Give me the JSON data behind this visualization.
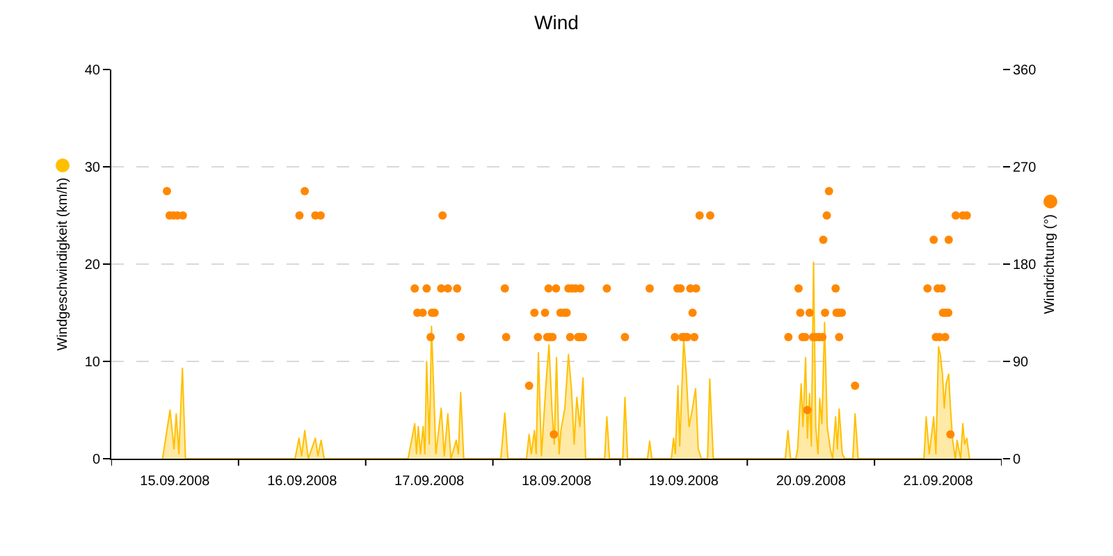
{
  "chart_data": {
    "type": "area",
    "title": "Wind",
    "ylabel": "Windgeschwindigkeit (km/h)",
    "y2label": "Windrichtung (°)",
    "xlim": [
      "2008-09-15",
      "2008-09-22"
    ],
    "xticks": [
      {
        "value": "2008-09-15",
        "label": null
      },
      {
        "value": "2008-09-15T12:00",
        "label": "15.09.2008"
      },
      {
        "value": "2008-09-16",
        "label": null
      },
      {
        "value": "2008-09-16T12:00",
        "label": "16.09.2008"
      },
      {
        "value": "2008-09-17",
        "label": null
      },
      {
        "value": "2008-09-17T12:00",
        "label": "17.09.2008"
      },
      {
        "value": "2008-09-18",
        "label": null
      },
      {
        "value": "2008-09-18T12:00",
        "label": "18.09.2008"
      },
      {
        "value": "2008-09-19",
        "label": null
      },
      {
        "value": "2008-09-19T12:00",
        "label": "19.09.2008"
      },
      {
        "value": "2008-09-20",
        "label": null
      },
      {
        "value": "2008-09-20T12:00",
        "label": "20.09.2008"
      },
      {
        "value": "2008-09-21",
        "label": null
      },
      {
        "value": "2008-09-21T12:00",
        "label": "21.09.2008"
      },
      {
        "value": "2008-09-22",
        "label": null
      }
    ],
    "ylim": [
      0,
      40
    ],
    "yticks": [
      0,
      10,
      20,
      30,
      40
    ],
    "y2lim": [
      0,
      360
    ],
    "y2ticks": [
      0,
      90,
      180,
      270,
      360
    ],
    "grid": "y",
    "series": [
      {
        "color": "#ffc000",
        "x": [
          "2008-09-15T09:40",
          "2008-09-15T11:05",
          "2008-09-15T11:50",
          "2008-09-15T12:15",
          "2008-09-15T12:45",
          "2008-09-15T13:25",
          "2008-09-15T14:00",
          "2008-09-16T10:40",
          "2008-09-16T11:25",
          "2008-09-16T11:55",
          "2008-09-16T12:30",
          "2008-09-16T13:10",
          "2008-09-16T14:30",
          "2008-09-16T15:00",
          "2008-09-16T15:35",
          "2008-09-16T16:10",
          "2008-09-17T08:00",
          "2008-09-17T09:15",
          "2008-09-17T09:35",
          "2008-09-17T09:55",
          "2008-09-17T10:20",
          "2008-09-17T10:50",
          "2008-09-17T11:10",
          "2008-09-17T11:30",
          "2008-09-17T12:00",
          "2008-09-17T12:25",
          "2008-09-17T13:15",
          "2008-09-17T14:15",
          "2008-09-17T14:50",
          "2008-09-17T15:30",
          "2008-09-17T16:05",
          "2008-09-17T17:05",
          "2008-09-17T17:30",
          "2008-09-17T17:55",
          "2008-09-17T18:30",
          "2008-09-18T01:30",
          "2008-09-18T02:15",
          "2008-09-18T02:50",
          "2008-09-18T06:20",
          "2008-09-18T06:50",
          "2008-09-18T07:15",
          "2008-09-18T07:50",
          "2008-09-18T08:10",
          "2008-09-18T08:35",
          "2008-09-18T09:10",
          "2008-09-18T10:00",
          "2008-09-18T10:35",
          "2008-09-18T11:10",
          "2008-09-18T11:35",
          "2008-09-18T12:00",
          "2008-09-18T12:30",
          "2008-09-18T12:50",
          "2008-09-18T13:35",
          "2008-09-18T14:15",
          "2008-09-18T14:50",
          "2008-09-18T15:20",
          "2008-09-18T15:50",
          "2008-09-18T16:25",
          "2008-09-18T17:00",
          "2008-09-18T17:30",
          "2008-09-18T21:05",
          "2008-09-18T21:30",
          "2008-09-18T22:00",
          "2008-09-19T00:30",
          "2008-09-19T00:55",
          "2008-09-19T01:25",
          "2008-09-19T05:10",
          "2008-09-19T05:35",
          "2008-09-19T06:00",
          "2008-09-19T09:40",
          "2008-09-19T10:05",
          "2008-09-19T10:25",
          "2008-09-19T10:55",
          "2008-09-19T11:15",
          "2008-09-19T12:00",
          "2008-09-19T12:30",
          "2008-09-19T13:00",
          "2008-09-19T13:40",
          "2008-09-19T14:15",
          "2008-09-19T14:45",
          "2008-09-19T15:20",
          "2008-09-19T16:30",
          "2008-09-19T16:55",
          "2008-09-19T17:35",
          "2008-09-20T07:10",
          "2008-09-20T07:40",
          "2008-09-20T08:10",
          "2008-09-20T09:10",
          "2008-09-20T09:30",
          "2008-09-20T10:10",
          "2008-09-20T10:30",
          "2008-09-20T11:00",
          "2008-09-20T11:20",
          "2008-09-20T11:45",
          "2008-09-20T12:05",
          "2008-09-20T12:30",
          "2008-09-20T12:55",
          "2008-09-20T13:20",
          "2008-09-20T13:40",
          "2008-09-20T14:05",
          "2008-09-20T14:35",
          "2008-09-20T15:05",
          "2008-09-20T15:40",
          "2008-09-20T16:05",
          "2008-09-20T16:40",
          "2008-09-20T17:00",
          "2008-09-20T17:20",
          "2008-09-20T17:55",
          "2008-09-20T18:25",
          "2008-09-20T19:55",
          "2008-09-20T20:20",
          "2008-09-20T20:55",
          "2008-09-21T09:20",
          "2008-09-21T09:45",
          "2008-09-21T10:20",
          "2008-09-21T11:10",
          "2008-09-21T11:35",
          "2008-09-21T12:05",
          "2008-09-21T12:25",
          "2008-09-21T12:50",
          "2008-09-21T13:10",
          "2008-09-21T13:30",
          "2008-09-21T14:00",
          "2008-09-21T14:20",
          "2008-09-21T14:45",
          "2008-09-21T15:15",
          "2008-09-21T15:35",
          "2008-09-21T16:15",
          "2008-09-21T16:40",
          "2008-09-21T17:00",
          "2008-09-21T17:25",
          "2008-09-21T17:55"
        ],
        "values": [
          0,
          5.0,
          1.0,
          4.6,
          0.5,
          9.3,
          0,
          0,
          2.1,
          0.3,
          2.9,
          0,
          2.1,
          0.3,
          1.9,
          0,
          0,
          3.6,
          0.5,
          3.3,
          0.5,
          3.3,
          0.5,
          10.0,
          1.5,
          13.6,
          0.5,
          5.2,
          0.3,
          4.6,
          0,
          1.9,
          0.5,
          6.8,
          0,
          0,
          4.7,
          0,
          0,
          2.5,
          0.5,
          2.9,
          0.5,
          10.9,
          0.3,
          7.6,
          11.7,
          4.8,
          1.5,
          10.4,
          0.5,
          2.9,
          5.2,
          10.7,
          7.1,
          1.5,
          6.3,
          3.3,
          8.3,
          0,
          0,
          4.3,
          0,
          0,
          6.3,
          0,
          0,
          1.8,
          0,
          0,
          2.1,
          0.5,
          7.5,
          1.3,
          12.3,
          8.6,
          3.3,
          5.2,
          7.2,
          1.0,
          0,
          0,
          8.2,
          0,
          0,
          2.9,
          0,
          0,
          1.0,
          7.7,
          3.3,
          10.4,
          2.1,
          6.7,
          1.3,
          20.2,
          3.3,
          0.5,
          6.2,
          3.6,
          14.0,
          3.3,
          1.0,
          0,
          4.3,
          1.0,
          5.1,
          0.5,
          0,
          0,
          4.6,
          0,
          0,
          4.3,
          0.5,
          4.3,
          0.5,
          11.5,
          10.7,
          8.6,
          5.2,
          7.7,
          8.7,
          5.2,
          1.9,
          0,
          1.9,
          0,
          3.6,
          1.5,
          2.1,
          0
        ]
      },
      {
        "type": "scatter",
        "axis": "y2",
        "color": "#ff8800",
        "marker": "circle",
        "x": [
          "2008-09-15T10:30",
          "2008-09-15T11:00",
          "2008-09-15T11:45",
          "2008-09-15T12:30",
          "2008-09-15T13:30",
          "2008-09-16T11:30",
          "2008-09-16T12:30",
          "2008-09-16T14:30",
          "2008-09-16T15:30",
          "2008-09-17T09:15",
          "2008-09-17T09:45",
          "2008-09-17T10:45",
          "2008-09-17T11:30",
          "2008-09-17T12:15",
          "2008-09-17T12:30",
          "2008-09-17T13:00",
          "2008-09-17T14:15",
          "2008-09-17T14:30",
          "2008-09-17T15:30",
          "2008-09-17T17:15",
          "2008-09-17T17:55",
          "2008-09-18T02:15",
          "2008-09-18T02:30",
          "2008-09-18T06:50",
          "2008-09-18T07:50",
          "2008-09-18T08:30",
          "2008-09-18T09:50",
          "2008-09-18T10:15",
          "2008-09-18T10:30",
          "2008-09-18T10:45",
          "2008-09-18T11:15",
          "2008-09-18T11:30",
          "2008-09-18T11:55",
          "2008-09-18T12:45",
          "2008-09-18T13:25",
          "2008-09-18T13:55",
          "2008-09-18T14:15",
          "2008-09-18T14:35",
          "2008-09-18T14:55",
          "2008-09-18T15:35",
          "2008-09-18T16:05",
          "2008-09-18T16:30",
          "2008-09-18T16:30",
          "2008-09-18T17:00",
          "2008-09-18T21:30",
          "2008-09-19T00:55",
          "2008-09-19T05:35",
          "2008-09-19T10:20",
          "2008-09-19T10:50",
          "2008-09-19T11:25",
          "2008-09-19T11:45",
          "2008-09-19T12:10",
          "2008-09-19T12:40",
          "2008-09-19T13:15",
          "2008-09-19T13:40",
          "2008-09-19T14:00",
          "2008-09-19T14:20",
          "2008-09-19T15:00",
          "2008-09-19T17:00",
          "2008-09-20T07:45",
          "2008-09-20T09:40",
          "2008-09-20T10:00",
          "2008-09-20T10:25",
          "2008-09-20T10:55",
          "2008-09-20T11:20",
          "2008-09-20T11:45",
          "2008-09-20T12:25",
          "2008-09-20T13:00",
          "2008-09-20T13:35",
          "2008-09-20T14:10",
          "2008-09-20T14:20",
          "2008-09-20T14:40",
          "2008-09-20T15:00",
          "2008-09-20T15:25",
          "2008-09-20T16:40",
          "2008-09-20T16:50",
          "2008-09-20T17:20",
          "2008-09-20T17:20",
          "2008-09-20T17:50",
          "2008-09-20T20:20",
          "2008-09-21T10:00",
          "2008-09-21T11:10",
          "2008-09-21T11:35",
          "2008-09-21T11:55",
          "2008-09-21T12:15",
          "2008-09-21T12:40",
          "2008-09-21T12:55",
          "2008-09-21T13:20",
          "2008-09-21T13:25",
          "2008-09-21T13:55",
          "2008-09-21T14:00",
          "2008-09-21T14:20",
          "2008-09-21T15:20",
          "2008-09-21T16:40",
          "2008-09-21T17:25"
        ],
        "values": [
          247.5,
          225,
          225,
          225,
          225,
          225,
          247.5,
          225,
          225,
          157.5,
          135,
          135,
          157.5,
          112.5,
          135,
          135,
          157.5,
          225,
          157.5,
          157.5,
          112.5,
          157.5,
          112.5,
          67.5,
          135,
          112.5,
          135,
          112.5,
          157.5,
          112.5,
          112.5,
          22.5,
          157.5,
          135,
          135,
          135,
          157.5,
          112.5,
          157.5,
          157.5,
          112.5,
          157.5,
          112.5,
          112.5,
          157.5,
          112.5,
          157.5,
          112.5,
          157.5,
          157.5,
          112.5,
          112.5,
          112.5,
          157.5,
          135,
          112.5,
          157.5,
          225,
          225,
          112.5,
          157.5,
          135,
          112.5,
          112.5,
          45,
          135,
          112.5,
          112.5,
          112.5,
          112.5,
          202.5,
          135,
          225,
          247.5,
          157.5,
          135,
          135,
          112.5,
          135,
          67.5,
          157.5,
          202.5,
          112.5,
          157.5,
          112.5,
          157.5,
          135,
          112.5,
          135,
          135,
          202.5,
          22.5,
          225,
          225,
          225
        ]
      }
    ]
  }
}
